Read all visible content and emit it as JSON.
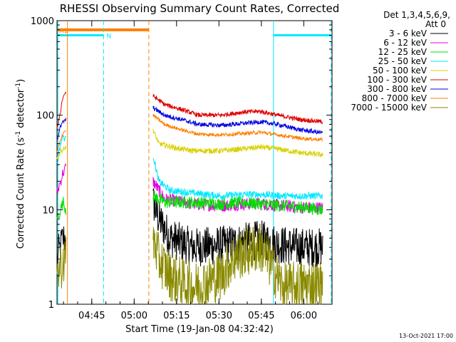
{
  "chart_data": {
    "type": "line",
    "title": "RHESSI Observing Summary Count Rates, Corrected",
    "xlabel": "Start Time (19-Jan-08 04:32:42)",
    "ylabel_main": "Corrected Count Rate (s",
    "ylabel_sup1": "-1",
    "ylabel_mid": " detector",
    "ylabel_sup2": "-1",
    "ylabel_end": ")",
    "x_unit": "minutes after 04:32:42",
    "xlim": [
      0,
      97.3
    ],
    "ylim": [
      1,
      1000
    ],
    "yscale": "log",
    "x_ticks": [
      {
        "label": "04:45",
        "t": 12.3
      },
      {
        "label": "05:00",
        "t": 27.3
      },
      {
        "label": "05:15",
        "t": 42.3
      },
      {
        "label": "05:30",
        "t": 57.3
      },
      {
        "label": "05:45",
        "t": 72.3
      },
      {
        "label": "06:00",
        "t": 87.3
      }
    ],
    "y_ticks": [
      {
        "label": "1",
        "v": 1
      },
      {
        "label": "10",
        "v": 10
      },
      {
        "label": "100",
        "v": 100
      },
      {
        "label": "1000",
        "v": 1000
      }
    ],
    "legend": {
      "header1": "Det 1,3,4,5,6,9,",
      "header2": "Att 0",
      "placement": "right"
    },
    "series": [
      {
        "name": "3 - 6 keV",
        "color": "#000000",
        "pre": [
          [
            0,
            3
          ],
          [
            1.2,
            4
          ],
          [
            2.2,
            5
          ],
          [
            3.2,
            5
          ]
        ],
        "post": [
          [
            34,
            12
          ],
          [
            36,
            8
          ],
          [
            40,
            5
          ],
          [
            48,
            4
          ],
          [
            58,
            4.2
          ],
          [
            66,
            4.5
          ],
          [
            72,
            4.8
          ],
          [
            80,
            4.2
          ],
          [
            86,
            4
          ],
          [
            94,
            4
          ]
        ],
        "noise": 0.22
      },
      {
        "name": "6 - 12 keV",
        "color": "#e000e0",
        "pre": [
          [
            0,
            15
          ],
          [
            1.2,
            20
          ],
          [
            2.2,
            25
          ],
          [
            3.2,
            28
          ]
        ],
        "post": [
          [
            34,
            20
          ],
          [
            38,
            13
          ],
          [
            48,
            11.5
          ],
          [
            58,
            11
          ],
          [
            66,
            11.5
          ],
          [
            72,
            11.5
          ],
          [
            80,
            11
          ],
          [
            88,
            10.5
          ],
          [
            94,
            10.5
          ]
        ],
        "noise": 0.07
      },
      {
        "name": "12 - 25 keV",
        "color": "#00e000",
        "pre": [
          [
            0,
            8
          ],
          [
            1.2,
            10
          ],
          [
            2.2,
            12
          ],
          [
            3.2,
            10
          ]
        ],
        "post": [
          [
            34,
            14
          ],
          [
            38,
            12
          ],
          [
            48,
            12
          ],
          [
            58,
            11.5
          ],
          [
            66,
            12
          ],
          [
            72,
            11.5
          ],
          [
            80,
            11
          ],
          [
            88,
            10.5
          ],
          [
            94,
            10
          ]
        ],
        "noise": 0.07
      },
      {
        "name": "25 - 50 keV",
        "color": "#00e8ff",
        "pre": [
          [
            0,
            30
          ],
          [
            1.2,
            50
          ],
          [
            2.2,
            60
          ],
          [
            3.2,
            55
          ]
        ],
        "post": [
          [
            34,
            38
          ],
          [
            36,
            20
          ],
          [
            40,
            16
          ],
          [
            48,
            15
          ],
          [
            58,
            14
          ],
          [
            66,
            14.5
          ],
          [
            72,
            14.5
          ],
          [
            80,
            14
          ],
          [
            88,
            14
          ],
          [
            94,
            14
          ]
        ],
        "noise": 0.04
      },
      {
        "name": "50 - 100 keV",
        "color": "#d8d000",
        "pre": [
          [
            0,
            35
          ],
          [
            1.2,
            40
          ],
          [
            2.2,
            45
          ],
          [
            3.2,
            45
          ]
        ],
        "post": [
          [
            34,
            70
          ],
          [
            36,
            50
          ],
          [
            42,
            45
          ],
          [
            48,
            42
          ],
          [
            58,
            42
          ],
          [
            66,
            44
          ],
          [
            72,
            46
          ],
          [
            78,
            44
          ],
          [
            86,
            40
          ],
          [
            94,
            38
          ]
        ],
        "noise": 0.03
      },
      {
        "name": "100 - 300 keV",
        "color": "#e00000",
        "pre": [
          [
            0,
            70
          ],
          [
            1.2,
            110
          ],
          [
            2.2,
            160
          ],
          [
            3.2,
            175
          ]
        ],
        "post": [
          [
            34,
            160
          ],
          [
            38,
            130
          ],
          [
            44,
            115
          ],
          [
            50,
            100
          ],
          [
            58,
            100
          ],
          [
            66,
            108
          ],
          [
            72,
            110
          ],
          [
            78,
            100
          ],
          [
            86,
            90
          ],
          [
            94,
            85
          ]
        ],
        "noise": 0.025
      },
      {
        "name": "300 - 800 keV",
        "color": "#0000e0",
        "pre": [
          [
            0,
            55
          ],
          [
            1.2,
            75
          ],
          [
            2.2,
            85
          ],
          [
            3.2,
            90
          ]
        ],
        "post": [
          [
            34,
            120
          ],
          [
            38,
            100
          ],
          [
            44,
            90
          ],
          [
            50,
            80
          ],
          [
            58,
            78
          ],
          [
            66,
            82
          ],
          [
            72,
            85
          ],
          [
            78,
            80
          ],
          [
            86,
            70
          ],
          [
            94,
            65
          ]
        ],
        "noise": 0.025
      },
      {
        "name": "800 - 7000 keV",
        "color": "#ff8000",
        "pre": [
          [
            0,
            40
          ],
          [
            1.2,
            55
          ],
          [
            2.2,
            65
          ],
          [
            3.2,
            70
          ]
        ],
        "post": [
          [
            34,
            100
          ],
          [
            38,
            80
          ],
          [
            44,
            70
          ],
          [
            50,
            63
          ],
          [
            58,
            62
          ],
          [
            66,
            64
          ],
          [
            72,
            66
          ],
          [
            78,
            62
          ],
          [
            86,
            57
          ],
          [
            94,
            55
          ]
        ],
        "noise": 0.02
      },
      {
        "name": "7000 - 15000 keV",
        "color": "#8a8a00",
        "pre": [
          [
            0,
            2
          ],
          [
            1.2,
            2.5
          ],
          [
            2.2,
            3
          ],
          [
            3.2,
            3
          ]
        ],
        "post": [
          [
            34,
            5
          ],
          [
            36,
            3
          ],
          [
            40,
            2
          ],
          [
            48,
            1.5
          ],
          [
            58,
            2
          ],
          [
            62,
            3
          ],
          [
            66,
            3.5
          ],
          [
            72,
            4
          ],
          [
            76,
            2.5
          ],
          [
            80,
            1.5
          ],
          [
            88,
            1.6
          ],
          [
            94,
            1.6
          ]
        ],
        "noise": 0.28
      }
    ],
    "attenuator_bar": {
      "label": "A1",
      "t_start": 0.3,
      "t_end": 32.5,
      "v": 800,
      "color": "#ff8000"
    },
    "night_bars": [
      {
        "label": "N",
        "t_start": 0,
        "t_end": 16.5,
        "v": 700,
        "color": "#00e8ff"
      },
      {
        "label": "",
        "t_start": 76.6,
        "t_end": 97.3,
        "v": 700,
        "color": "#00e8ff"
      }
    ],
    "markers": [
      {
        "t": 0.3,
        "color": "#00e8ff",
        "style": "solid"
      },
      {
        "t": 3.7,
        "color": "#ff8000",
        "style": "solid"
      },
      {
        "t": 16.5,
        "color": "#00e8ff",
        "style": "dashed"
      },
      {
        "t": 32.5,
        "color": "#ff8000",
        "style": "dashed"
      },
      {
        "t": 76.6,
        "color": "#00e8ff",
        "style": "solid"
      },
      {
        "t": 97.0,
        "color": "#00e8ff",
        "style": "dashed"
      }
    ]
  },
  "footer": {
    "date": "13-Oct-2021 17:00"
  }
}
